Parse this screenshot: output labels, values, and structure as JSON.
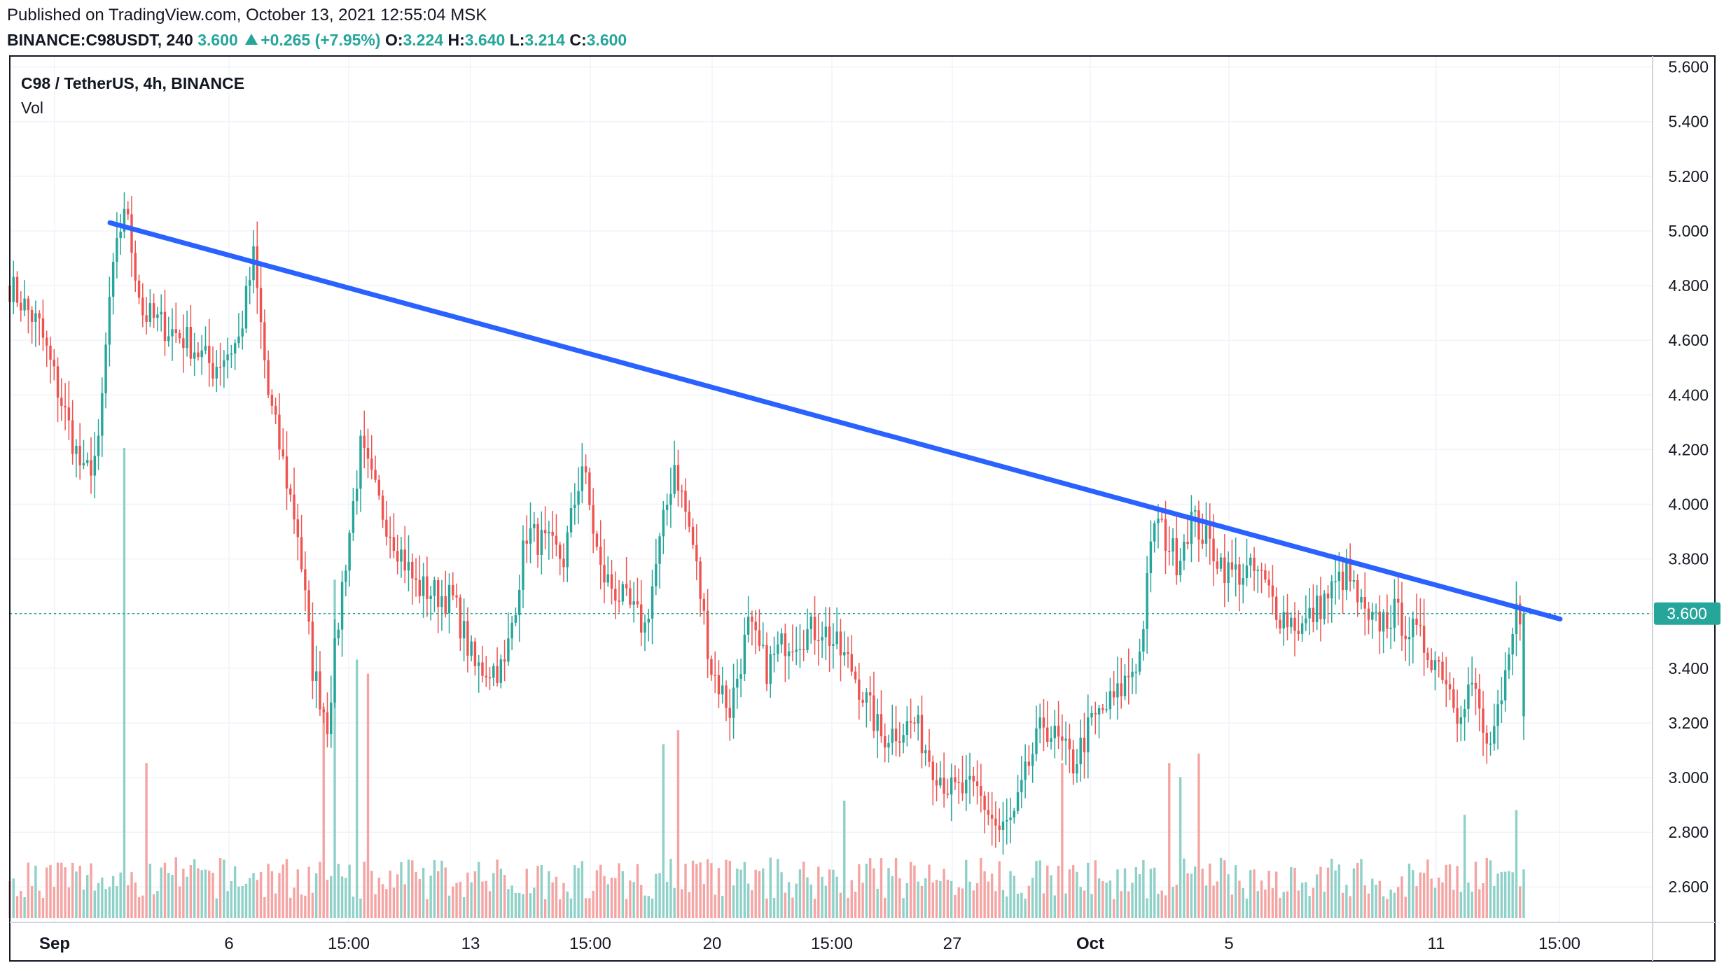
{
  "header": {
    "published": "Published on TradingView.com, October 13, 2021 12:55:04 MSK",
    "symbol": "BINANCE:C98USDT, 240",
    "last": "3.600",
    "change": "+0.265 (+7.95%)",
    "o_label": "O:",
    "o": "3.224",
    "h_label": "H:",
    "h": "3.640",
    "l_label": "L:",
    "l": "3.214",
    "c_label": "C:",
    "c": "3.600"
  },
  "legend": {
    "main": "C98 / TetherUS, 4h, BINANCE",
    "vol": "Vol"
  },
  "colors": {
    "up": "#26a69a",
    "down": "#ef5350",
    "vol_up": "#8fd1c8",
    "vol_down": "#f4a5a3",
    "trendline": "#2962ff",
    "price_line": "#26a69a"
  },
  "price_label": "3.600",
  "chart_data": {
    "type": "candlestick",
    "title": "C98 / TetherUS, 4h, BINANCE",
    "y_ticks": [
      "2.600",
      "2.800",
      "3.000",
      "3.200",
      "3.400",
      "3.600",
      "3.800",
      "4.000",
      "4.200",
      "4.400",
      "4.600",
      "4.800",
      "5.000",
      "5.200",
      "5.400",
      "5.600"
    ],
    "ylim": [
      2.47,
      5.64
    ],
    "x_ticks": [
      "Sep",
      "6",
      "15:00",
      "13",
      "15:00",
      "20",
      "15:00",
      "27",
      "Oct",
      "5",
      "11",
      "15:00"
    ],
    "last_price": 3.6,
    "trendline": {
      "from": [
        5.03,
        4.55
      ],
      "to": [
        3.58,
        4.55
      ]
    },
    "anchors": [
      [
        0,
        4.8
      ],
      [
        8,
        4.65
      ],
      [
        20,
        4.1
      ],
      [
        24,
        4.2
      ],
      [
        27,
        4.75
      ],
      [
        31,
        5.1
      ],
      [
        36,
        4.7
      ],
      [
        48,
        4.6
      ],
      [
        55,
        4.5
      ],
      [
        62,
        4.6
      ],
      [
        66,
        4.9
      ],
      [
        70,
        4.4
      ],
      [
        78,
        3.9
      ],
      [
        82,
        3.4
      ],
      [
        86,
        3.2
      ],
      [
        90,
        3.7
      ],
      [
        95,
        4.2
      ],
      [
        100,
        4.0
      ],
      [
        110,
        3.7
      ],
      [
        120,
        3.65
      ],
      [
        126,
        3.4
      ],
      [
        134,
        3.4
      ],
      [
        140,
        3.9
      ],
      [
        150,
        3.8
      ],
      [
        155,
        4.15
      ],
      [
        160,
        3.75
      ],
      [
        172,
        3.55
      ],
      [
        180,
        4.15
      ],
      [
        185,
        3.85
      ],
      [
        190,
        3.4
      ],
      [
        195,
        3.25
      ],
      [
        200,
        3.55
      ],
      [
        205,
        3.4
      ],
      [
        210,
        3.5
      ],
      [
        220,
        3.55
      ],
      [
        228,
        3.4
      ],
      [
        236,
        3.15
      ],
      [
        245,
        3.2
      ],
      [
        250,
        3.05
      ],
      [
        255,
        2.95
      ],
      [
        262,
        2.95
      ],
      [
        268,
        2.8
      ],
      [
        272,
        2.85
      ],
      [
        276,
        3.05
      ],
      [
        280,
        3.2
      ],
      [
        288,
        3.05
      ],
      [
        293,
        3.2
      ],
      [
        300,
        3.3
      ],
      [
        306,
        3.45
      ],
      [
        310,
        3.95
      ],
      [
        316,
        3.8
      ],
      [
        320,
        3.95
      ],
      [
        325,
        3.85
      ],
      [
        330,
        3.75
      ],
      [
        338,
        3.75
      ],
      [
        344,
        3.6
      ],
      [
        350,
        3.55
      ],
      [
        356,
        3.65
      ],
      [
        362,
        3.75
      ],
      [
        368,
        3.55
      ],
      [
        375,
        3.6
      ],
      [
        382,
        3.5
      ],
      [
        388,
        3.4
      ],
      [
        392,
        3.25
      ],
      [
        396,
        3.35
      ],
      [
        400,
        3.1
      ],
      [
        404,
        3.25
      ],
      [
        408,
        3.6
      ]
    ],
    "volume_peaks": [
      [
        31,
        1.0
      ],
      [
        37,
        0.33
      ],
      [
        85,
        0.45
      ],
      [
        88,
        0.72
      ],
      [
        94,
        0.55
      ],
      [
        97,
        0.52
      ],
      [
        177,
        0.37
      ],
      [
        181,
        0.4
      ],
      [
        226,
        0.25
      ],
      [
        285,
        0.33
      ],
      [
        314,
        0.33
      ],
      [
        317,
        0.3
      ],
      [
        322,
        0.35
      ],
      [
        394,
        0.22
      ],
      [
        408,
        0.23
      ]
    ]
  }
}
